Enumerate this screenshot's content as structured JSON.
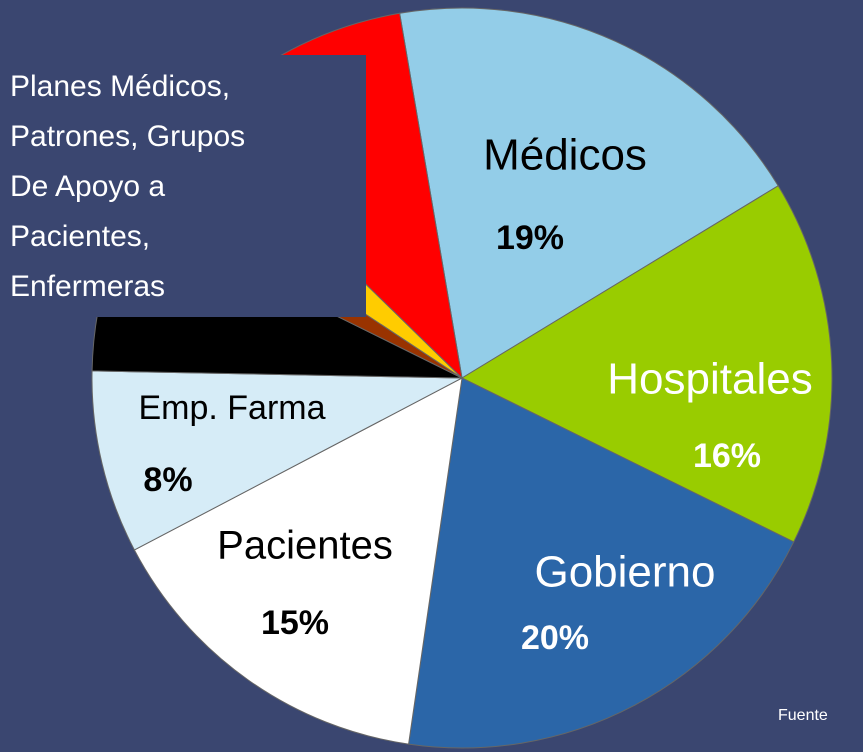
{
  "chart_data": {
    "type": "pie",
    "categories": [
      "Médicos",
      "Hospitales",
      "Gobierno",
      "Pacientes",
      "Emp. Farma",
      null,
      null,
      null,
      null
    ],
    "values": [
      19,
      16,
      20,
      15,
      8,
      7,
      2,
      3,
      10
    ],
    "value_labels": [
      "19%",
      "16%",
      "20%",
      "15%",
      "8%",
      null,
      null,
      null,
      null
    ],
    "colors": [
      "#93cde8",
      "#99cc00",
      "#2b66a8",
      "#ffffff",
      "#d6ecf7",
      "#000000",
      "#993300",
      "#ffcc00",
      "#ff0000"
    ],
    "annotation": [
      "Planes Médicos,",
      "Patrones, Grupos",
      "De Apoyo a",
      "Pacientes,",
      "Enfermeras"
    ],
    "source": "Fuente"
  }
}
